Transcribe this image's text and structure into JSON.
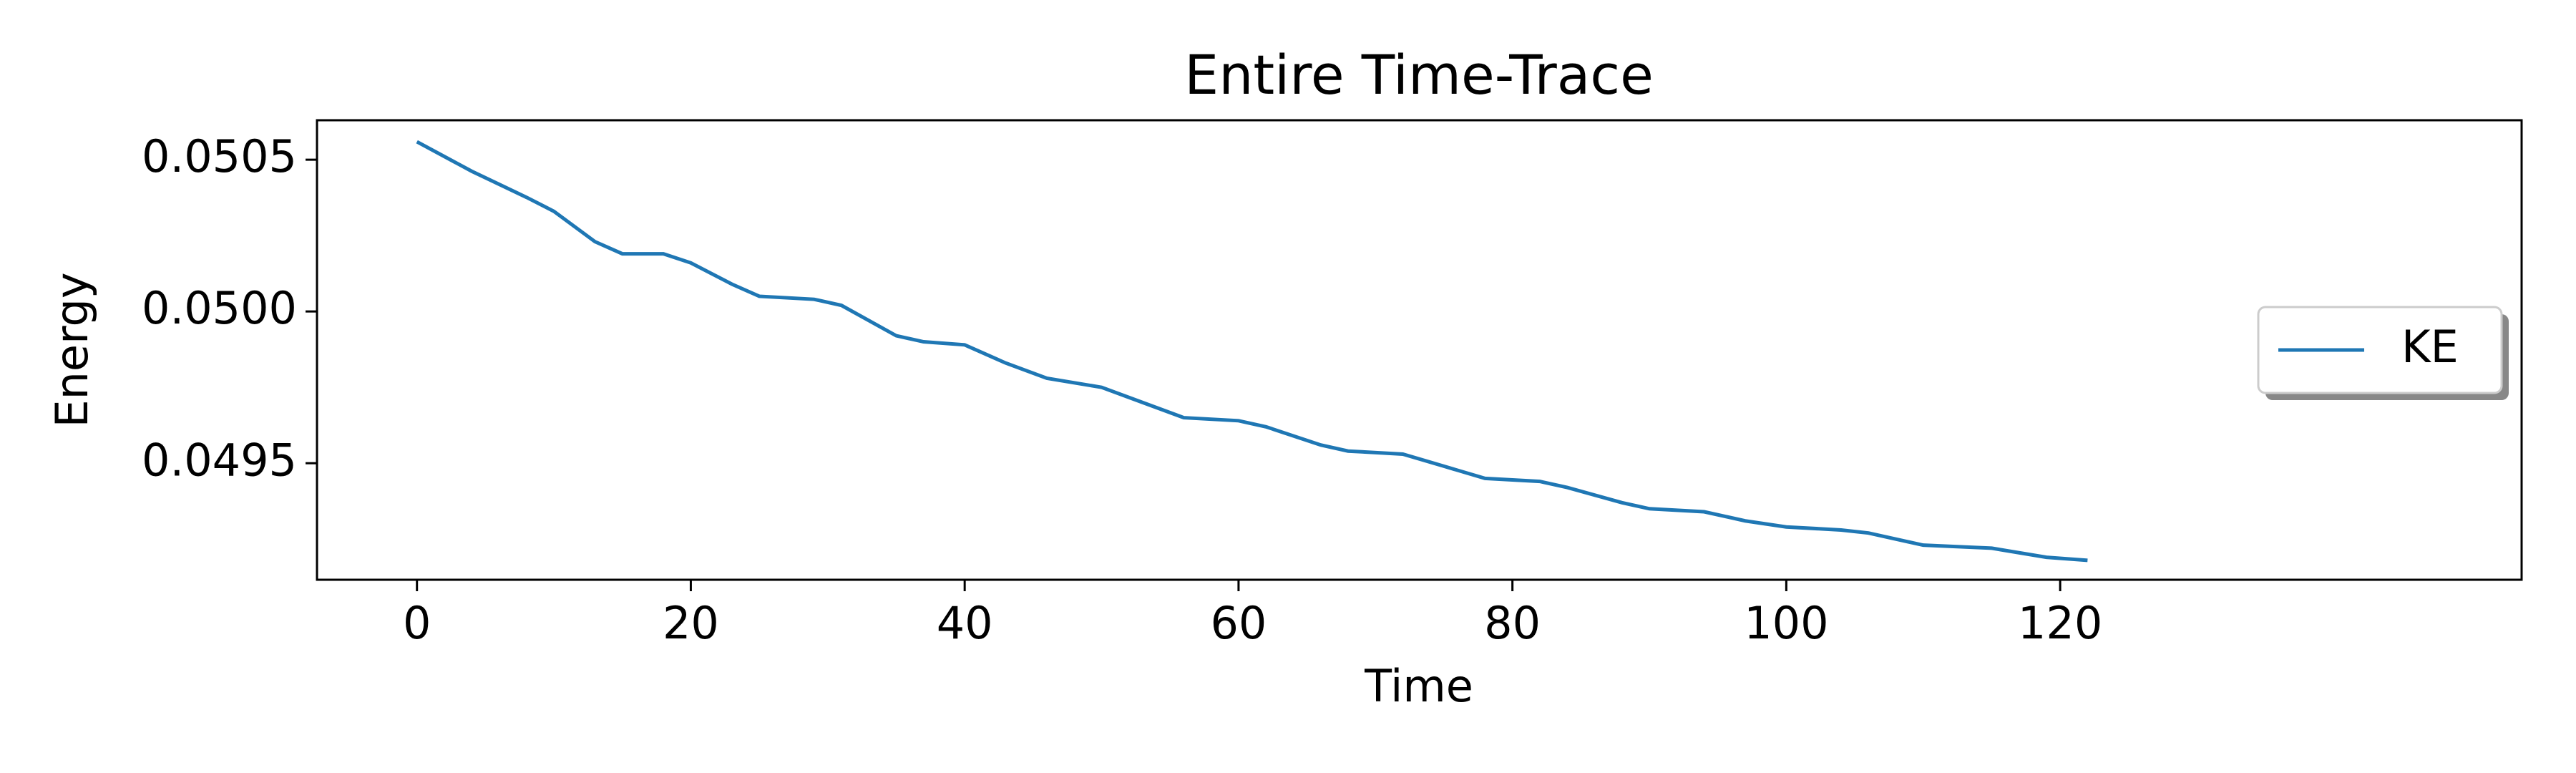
{
  "chart_data": {
    "type": "line",
    "title": "Entire Time-Trace",
    "x_label": "Time",
    "y_label": "Energy",
    "x": [
      0,
      4,
      8,
      10,
      13,
      15,
      18,
      20,
      23,
      25,
      29,
      31,
      35,
      37,
      40,
      43,
      46,
      50,
      53,
      56,
      60,
      62,
      66,
      68,
      72,
      75,
      78,
      82,
      84,
      88,
      90,
      94,
      97,
      100,
      104,
      106,
      110,
      115,
      119,
      122
    ],
    "series": [
      {
        "name": "KE",
        "color": "#1f77b4",
        "values": [
          0.050559,
          0.050462,
          0.050376,
          0.05033,
          0.05023,
          0.05019,
          0.05019,
          0.05016,
          0.05009,
          0.05005,
          0.05004,
          0.05002,
          0.04992,
          0.0499,
          0.04989,
          0.04983,
          0.04978,
          0.04975,
          0.0497,
          0.04965,
          0.04964,
          0.04962,
          0.04956,
          0.04954,
          0.04953,
          0.04949,
          0.04945,
          0.04944,
          0.04942,
          0.04937,
          0.04935,
          0.04934,
          0.04931,
          0.04929,
          0.04928,
          0.04927,
          0.04923,
          0.04922,
          0.04919,
          0.04918
        ]
      }
    ],
    "xlim": [
      -7.3,
      153.7
    ],
    "ylim": [
      0.049116,
      0.05063
    ],
    "xticks": [
      0,
      20,
      40,
      60,
      80,
      100,
      120
    ],
    "yticks": [
      0.0495,
      {
        "value": 0.05,
        "label": "0.0500"
      },
      0.0505
    ],
    "legend": "center right"
  }
}
